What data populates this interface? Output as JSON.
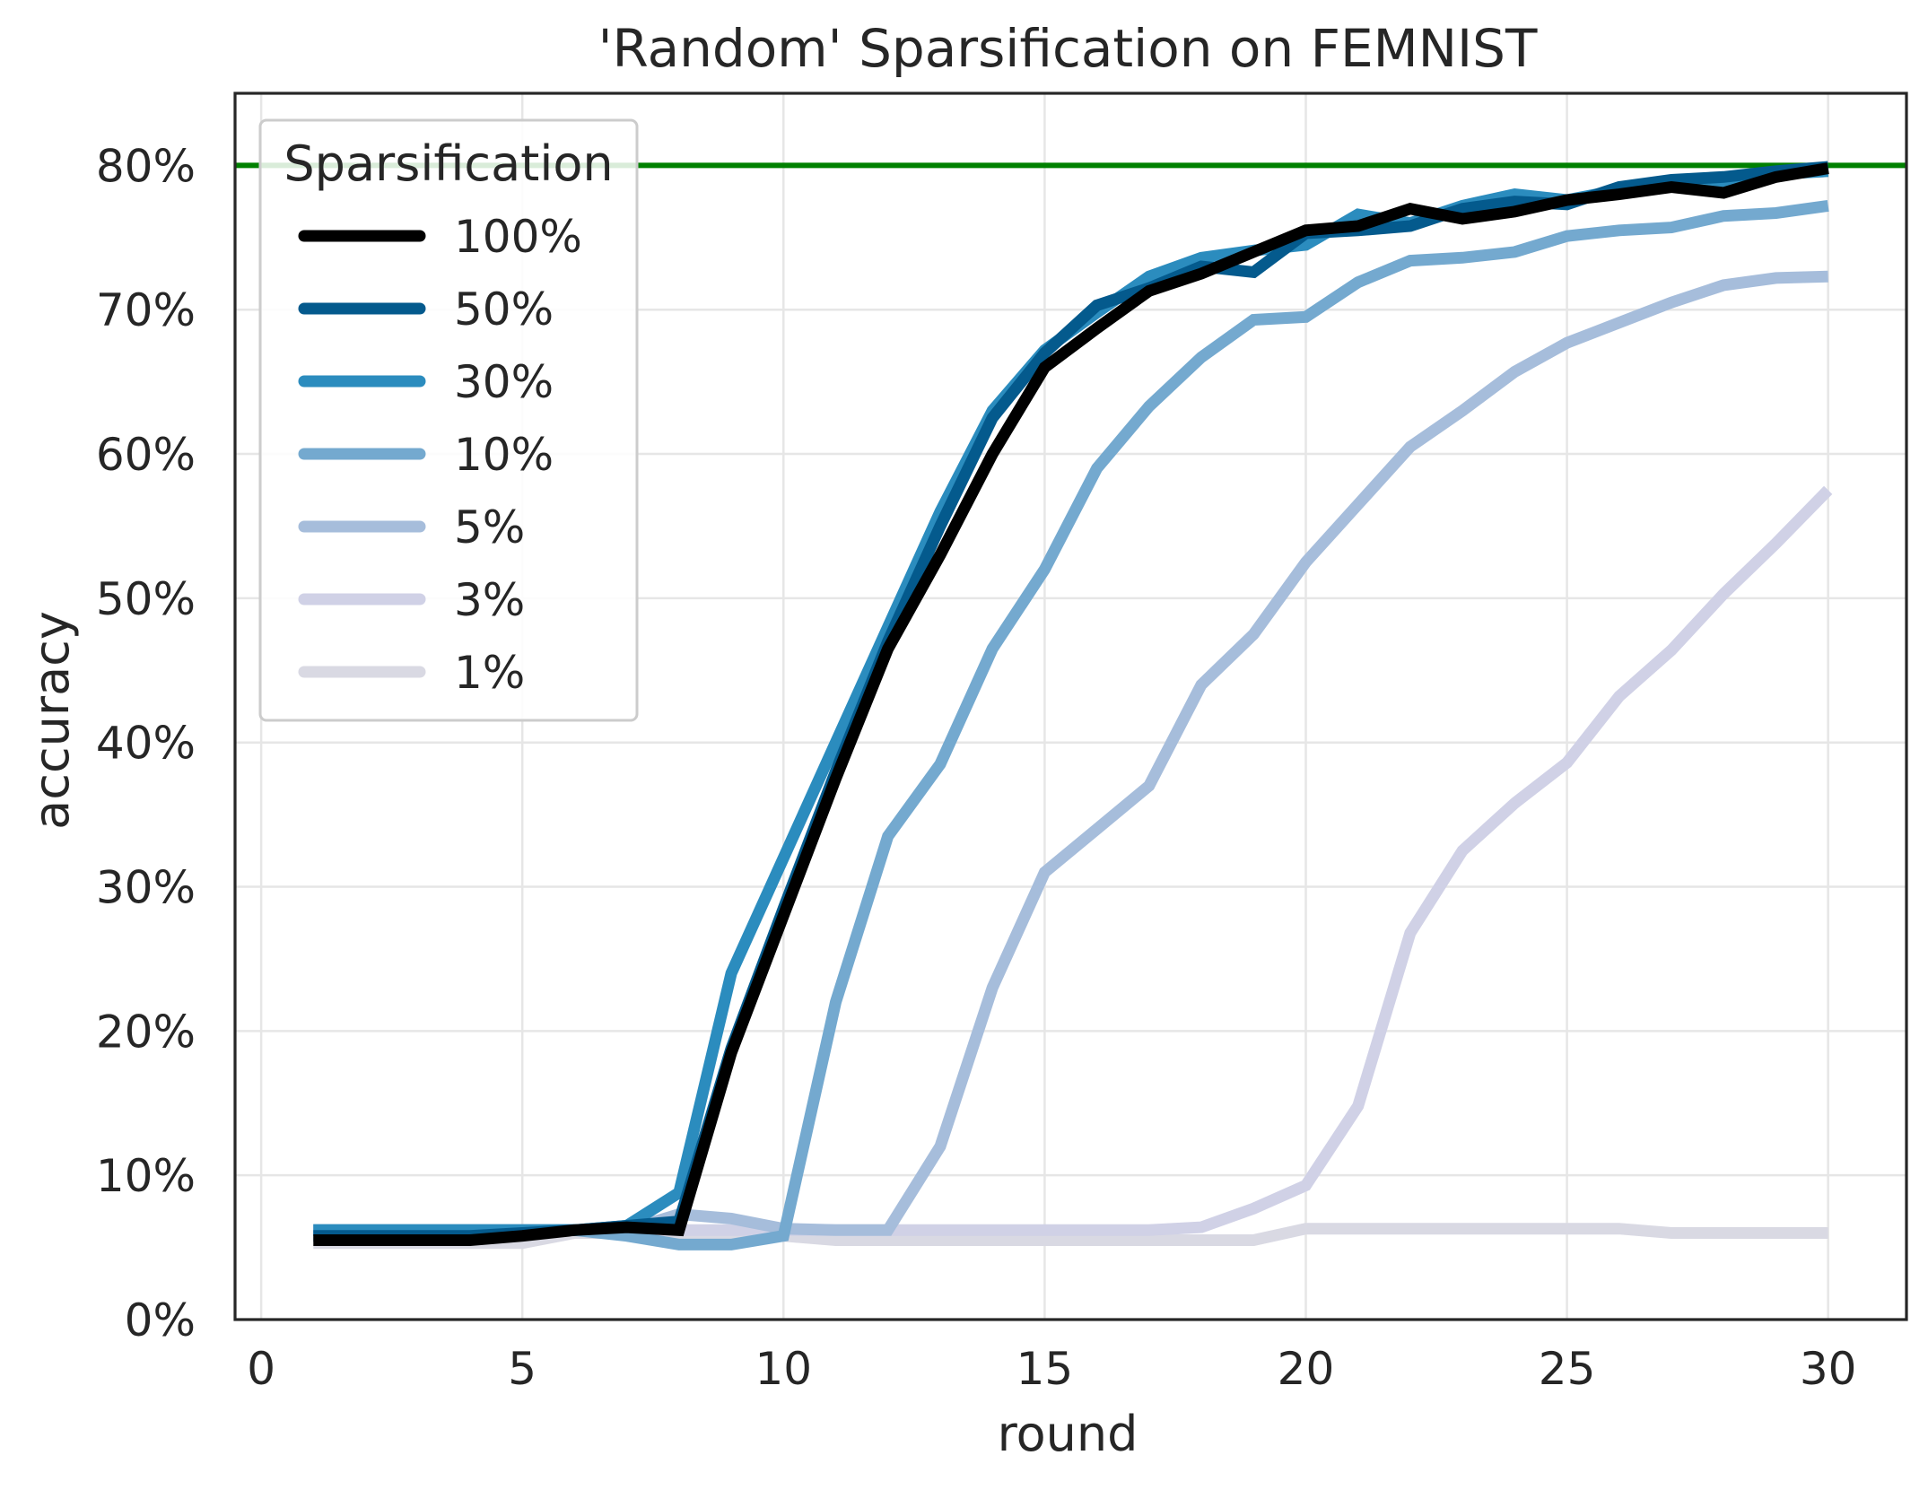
{
  "chart_data": {
    "type": "line",
    "title": "'Random' Sparsification on FEMNIST",
    "xlabel": "round",
    "ylabel": "accuracy",
    "xlim": [
      -0.5,
      31.5
    ],
    "ylim": [
      0,
      85
    ],
    "xticks": [
      0,
      5,
      10,
      15,
      20,
      25,
      30
    ],
    "xtick_labels": [
      "0",
      "5",
      "10",
      "15",
      "20",
      "25",
      "30"
    ],
    "yticks": [
      0,
      10,
      20,
      30,
      40,
      50,
      60,
      70,
      80
    ],
    "ytick_labels": [
      "0%",
      "10%",
      "20%",
      "30%",
      "40%",
      "50%",
      "60%",
      "70%",
      "80%"
    ],
    "grid": true,
    "legend": {
      "title": "Sparsification",
      "placement": "upper left"
    },
    "reference_line": {
      "y": 80,
      "color": "#008000"
    },
    "x": [
      1,
      2,
      3,
      4,
      5,
      6,
      7,
      8,
      9,
      10,
      11,
      12,
      13,
      14,
      15,
      16,
      17,
      18,
      19,
      20,
      21,
      22,
      23,
      24,
      25,
      26,
      27,
      28,
      29,
      30
    ],
    "series": [
      {
        "name": "100%",
        "color": "#000000",
        "values": [
          5.5,
          5.5,
          5.5,
          5.5,
          5.8,
          6.2,
          6.4,
          6.2,
          18.5,
          28,
          37.5,
          46.5,
          53,
          60,
          66,
          68.7,
          71.3,
          72.5,
          74,
          75.5,
          75.8,
          77,
          76.3,
          76.8,
          77.6,
          78,
          78.5,
          78.1,
          79.2,
          79.8
        ]
      },
      {
        "name": "50%",
        "color": "#045a8d",
        "values": [
          5.8,
          5.8,
          5.8,
          5.8,
          6,
          6.2,
          6.5,
          6.8,
          18.8,
          28.5,
          38,
          47,
          55,
          62.5,
          67,
          70.3,
          71.5,
          73,
          72.6,
          75.3,
          75.5,
          75.8,
          77,
          77.5,
          77.3,
          78.5,
          79,
          79.2,
          79.6,
          79.9
        ]
      },
      {
        "name": "30%",
        "color": "#2b8cbe",
        "values": [
          6.2,
          6.2,
          6.2,
          6.2,
          6.2,
          6.2,
          6.5,
          8.8,
          24,
          32,
          40,
          48,
          56,
          63,
          67.2,
          69.8,
          72.3,
          73.6,
          74.1,
          74.5,
          76.6,
          76,
          77.2,
          78,
          77.6,
          78.3,
          78.9,
          78.8,
          79.4,
          79.6
        ]
      },
      {
        "name": "10%",
        "color": "#74a9cf",
        "values": [
          6.2,
          6.2,
          6.2,
          6.2,
          6.2,
          6.2,
          5.8,
          5.2,
          5.2,
          5.8,
          22,
          33.5,
          38.5,
          46.5,
          52,
          59,
          63.3,
          66.7,
          69.3,
          69.5,
          71.9,
          73.4,
          73.6,
          74,
          75.1,
          75.5,
          75.7,
          76.5,
          76.7,
          77.2
        ]
      },
      {
        "name": "5%",
        "color": "#a6bddb",
        "values": [
          6.2,
          6.2,
          6.2,
          6.2,
          6.2,
          6.2,
          6.2,
          7.3,
          7,
          6.3,
          6.2,
          6.2,
          12,
          23,
          31,
          34,
          37,
          44,
          47.5,
          52.5,
          56.5,
          60.5,
          63,
          65.7,
          67.7,
          69.1,
          70.5,
          71.7,
          72.2,
          72.3
        ]
      },
      {
        "name": "3%",
        "color": "#d0d1e6",
        "values": [
          6.2,
          6.2,
          6.2,
          6.2,
          6.2,
          6.2,
          6.2,
          6.2,
          6.2,
          6.2,
          6.2,
          6.2,
          6.2,
          6.2,
          6.2,
          6.2,
          6.2,
          6.4,
          7.7,
          9.3,
          14.8,
          26.8,
          32.5,
          35.8,
          38.6,
          43.2,
          46.4,
          50.3,
          53.8,
          57.5
        ]
      },
      {
        "name": "1%",
        "color": "#d9d9e3",
        "values": [
          5.3,
          5.3,
          5.3,
          5.3,
          5.3,
          6,
          6,
          5.8,
          5.8,
          5.8,
          5.5,
          5.5,
          5.5,
          5.5,
          5.5,
          5.5,
          5.5,
          5.5,
          5.5,
          6.3,
          6.3,
          6.3,
          6.3,
          6.3,
          6.3,
          6.3,
          6,
          6,
          6,
          6
        ]
      }
    ]
  }
}
